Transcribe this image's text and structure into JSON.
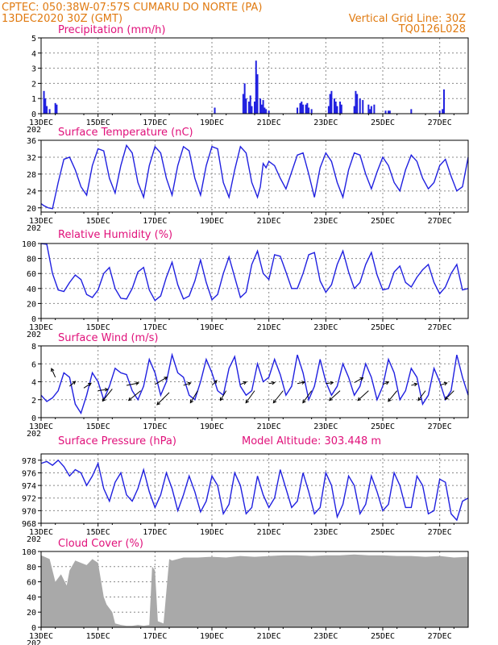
{
  "header": {
    "left_line1": "CPTEC:   050:38W-07:57S   CUMARU DO NORTE (PA)",
    "left_line2": "13DEC2020 30Z (GMT)",
    "right_line2": "Vertical Grid Line: 30Z",
    "right_line3": "TQ0126L028"
  },
  "colors": {
    "line": "#2020e0",
    "bar": "#2020e0",
    "cloud": "#a9a9a9",
    "title": "#e0107a",
    "header": "#e07a10",
    "grid": "#888888"
  },
  "x_axis": {
    "day_ticks": [
      "13DEC",
      "15DEC",
      "17DEC",
      "19DEC",
      "21DEC",
      "23DEC",
      "25DEC",
      "27DEC"
    ],
    "day_values": [
      0,
      2,
      4,
      6,
      8,
      10,
      12,
      14
    ],
    "range": [
      0,
      15
    ],
    "under_label": "202"
  },
  "chart_data": [
    {
      "type": "bar",
      "title": "Precipitation (mm/h)",
      "ylim": [
        0,
        5
      ],
      "yticks": [
        0,
        1,
        2,
        3,
        4,
        5
      ],
      "x": [
        0.1,
        0.15,
        0.2,
        0.3,
        0.5,
        0.55,
        6.1,
        7.1,
        7.15,
        7.2,
        7.3,
        7.35,
        7.4,
        7.5,
        7.55,
        7.6,
        7.7,
        7.75,
        7.8,
        7.85,
        7.9,
        8.0,
        9.0,
        9.1,
        9.15,
        9.2,
        9.3,
        9.35,
        9.4,
        9.5,
        10.1,
        10.15,
        10.2,
        10.3,
        10.35,
        10.4,
        10.5,
        10.55,
        11.0,
        11.05,
        11.1,
        11.2,
        11.3,
        11.5,
        11.55,
        11.6,
        11.7,
        12.1,
        12.2,
        12.25,
        13.0,
        14.0,
        14.1,
        14.15
      ],
      "values": [
        1.5,
        1.0,
        0.5,
        0.3,
        0.7,
        0.6,
        0.4,
        1.3,
        2.0,
        1.0,
        0.8,
        1.2,
        0.5,
        0.8,
        3.5,
        2.6,
        1.0,
        0.6,
        0.9,
        0.4,
        0.3,
        0.2,
        0.4,
        0.7,
        0.8,
        0.6,
        0.6,
        0.7,
        0.4,
        0.3,
        0.5,
        1.3,
        1.5,
        1.0,
        0.8,
        0.5,
        0.8,
        0.6,
        0.5,
        1.5,
        1.3,
        1.0,
        0.9,
        0.6,
        0.3,
        0.5,
        0.6,
        0.2,
        0.2,
        0.2,
        0.3,
        0.2,
        0.3,
        1.6
      ]
    },
    {
      "type": "line",
      "title": "Surface Temperature (nC)",
      "ylim": [
        19,
        36
      ],
      "yticks": [
        20,
        24,
        28,
        32,
        36
      ],
      "ytick_labels": [
        "20",
        "24",
        "28",
        "32",
        "36"
      ],
      "extra_yticks": [],
      "x": [
        0.0,
        0.1,
        0.25,
        0.4,
        0.6,
        0.8,
        1.0,
        1.2,
        1.4,
        1.6,
        1.8,
        2.0,
        2.2,
        2.4,
        2.6,
        2.8,
        3.0,
        3.2,
        3.4,
        3.6,
        3.8,
        4.0,
        4.2,
        4.4,
        4.6,
        4.8,
        5.0,
        5.2,
        5.4,
        5.6,
        5.8,
        6.0,
        6.2,
        6.4,
        6.6,
        6.8,
        7.0,
        7.2,
        7.4,
        7.6,
        7.7,
        7.8,
        7.9,
        8.0,
        8.2,
        8.4,
        8.6,
        8.8,
        9.0,
        9.2,
        9.4,
        9.6,
        9.8,
        10.0,
        10.2,
        10.4,
        10.6,
        10.8,
        11.0,
        11.2,
        11.4,
        11.6,
        11.8,
        12.0,
        12.2,
        12.4,
        12.6,
        12.8,
        13.0,
        13.2,
        13.4,
        13.6,
        13.8,
        14.0,
        14.2,
        14.4,
        14.6,
        14.8,
        15.0
      ],
      "values": [
        21.0,
        20.5,
        20.0,
        19.8,
        26.0,
        31.5,
        32.0,
        29.0,
        25.0,
        23.0,
        30.0,
        34.0,
        33.5,
        27.0,
        23.5,
        30.0,
        34.8,
        33.0,
        26.0,
        22.5,
        30.0,
        34.5,
        33.0,
        27.0,
        23.0,
        30.0,
        34.5,
        33.5,
        27.0,
        23.0,
        30.0,
        34.5,
        34.0,
        26.0,
        22.5,
        29.0,
        34.5,
        33.0,
        26.0,
        22.5,
        25.0,
        30.5,
        29.5,
        31.0,
        30.0,
        27.0,
        24.5,
        28.5,
        32.5,
        33.0,
        28.0,
        22.5,
        29.5,
        33.0,
        31.0,
        26.0,
        22.5,
        29.0,
        33.0,
        32.5,
        28.0,
        24.5,
        28.5,
        32.0,
        30.0,
        26.0,
        24.0,
        29.0,
        32.5,
        31.0,
        27.0,
        24.5,
        26.0,
        30.0,
        31.5,
        27.5,
        24.0,
        25.0,
        32.0
      ]
    },
    {
      "type": "line",
      "title": "Relative Humidity (%)",
      "ylim": [
        0,
        100
      ],
      "yticks": [
        0,
        20,
        40,
        60,
        80,
        100
      ],
      "x": [
        0.0,
        0.2,
        0.4,
        0.6,
        0.8,
        1.0,
        1.2,
        1.4,
        1.6,
        1.8,
        2.0,
        2.2,
        2.4,
        2.6,
        2.8,
        3.0,
        3.2,
        3.4,
        3.6,
        3.8,
        4.0,
        4.2,
        4.4,
        4.6,
        4.8,
        5.0,
        5.2,
        5.4,
        5.6,
        5.8,
        6.0,
        6.2,
        6.4,
        6.6,
        6.8,
        7.0,
        7.2,
        7.4,
        7.6,
        7.8,
        8.0,
        8.2,
        8.4,
        8.6,
        8.8,
        9.0,
        9.2,
        9.4,
        9.6,
        9.8,
        10.0,
        10.2,
        10.4,
        10.6,
        10.8,
        11.0,
        11.2,
        11.4,
        11.6,
        11.8,
        12.0,
        12.2,
        12.4,
        12.6,
        12.8,
        13.0,
        13.2,
        13.4,
        13.6,
        13.8,
        14.0,
        14.2,
        14.4,
        14.6,
        14.8,
        15.0
      ],
      "values": [
        100,
        99,
        60,
        38,
        36,
        48,
        58,
        52,
        32,
        28,
        38,
        60,
        68,
        40,
        27,
        26,
        40,
        62,
        68,
        38,
        24,
        30,
        55,
        75,
        45,
        26,
        30,
        50,
        78,
        48,
        25,
        32,
        60,
        82,
        55,
        28,
        35,
        72,
        90,
        60,
        52,
        85,
        83,
        62,
        40,
        40,
        60,
        85,
        88,
        50,
        35,
        45,
        72,
        90,
        62,
        40,
        48,
        72,
        88,
        58,
        38,
        40,
        62,
        70,
        48,
        42,
        55,
        65,
        72,
        48,
        33,
        42,
        60,
        72,
        38,
        40
      ]
    },
    {
      "type": "line",
      "title": "Surface Wind (m/s)",
      "ylim": [
        0,
        8
      ],
      "yticks": [
        0,
        2,
        4,
        6,
        8
      ],
      "x": [
        0.0,
        0.2,
        0.4,
        0.6,
        0.8,
        1.0,
        1.2,
        1.4,
        1.6,
        1.8,
        2.0,
        2.2,
        2.4,
        2.6,
        2.8,
        3.0,
        3.2,
        3.4,
        3.6,
        3.8,
        4.0,
        4.2,
        4.4,
        4.6,
        4.8,
        5.0,
        5.2,
        5.4,
        5.6,
        5.8,
        6.0,
        6.2,
        6.4,
        6.6,
        6.8,
        7.0,
        7.2,
        7.4,
        7.6,
        7.8,
        8.0,
        8.2,
        8.4,
        8.6,
        8.8,
        9.0,
        9.2,
        9.4,
        9.6,
        9.8,
        10.0,
        10.2,
        10.4,
        10.6,
        10.8,
        11.0,
        11.2,
        11.4,
        11.6,
        11.8,
        12.0,
        12.2,
        12.4,
        12.6,
        12.8,
        13.0,
        13.2,
        13.4,
        13.6,
        13.8,
        14.0,
        14.2,
        14.4,
        14.6,
        14.8,
        15.0
      ],
      "values": [
        2.5,
        1.8,
        2.2,
        3.0,
        5.0,
        4.5,
        1.5,
        0.5,
        2.5,
        5.0,
        4.0,
        2.0,
        3.5,
        5.5,
        5.0,
        4.8,
        3.0,
        2.0,
        3.5,
        6.5,
        5.0,
        2.5,
        4.0,
        7.0,
        5.0,
        4.5,
        2.5,
        2.0,
        4.0,
        6.5,
        5.0,
        3.0,
        2.5,
        5.5,
        6.8,
        3.5,
        2.5,
        3.0,
        6.0,
        4.0,
        4.5,
        6.5,
        4.8,
        2.5,
        3.5,
        7.0,
        5.0,
        2.0,
        3.5,
        6.5,
        4.0,
        2.5,
        3.5,
        6.0,
        4.5,
        2.5,
        3.5,
        6.0,
        4.5,
        2.0,
        3.5,
        6.5,
        5.0,
        2.0,
        3.0,
        5.5,
        4.5,
        1.5,
        2.5,
        5.5,
        4.0,
        2.0,
        3.0,
        7.0,
        4.5,
        2.5
      ],
      "vectors": {
        "x": [
          0.5,
          1.0,
          1.5,
          2.0,
          2.5,
          3.0,
          3.5,
          4.0,
          4.5,
          5.0,
          5.5,
          6.0,
          6.5,
          7.0,
          7.5,
          8.0,
          8.5,
          9.0,
          9.5,
          10.0,
          10.5,
          11.0,
          11.5,
          12.0,
          12.5,
          13.0,
          13.5,
          14.0,
          14.5
        ],
        "u": [
          -0.8,
          1.2,
          1.5,
          2.0,
          -2.0,
          2.5,
          -2.5,
          2.5,
          -2.5,
          1.5,
          -1.5,
          1.0,
          -1.2,
          1.2,
          -1.8,
          1.2,
          -2.0,
          1.5,
          -1.8,
          1.5,
          -2.2,
          1.8,
          -2.2,
          1.2,
          -1.8,
          1.2,
          -1.5,
          1.5,
          -1.8
        ],
        "v": [
          1.8,
          1.0,
          1.0,
          0.3,
          -2.5,
          0.5,
          -2.0,
          1.5,
          -2.5,
          0.5,
          -2.5,
          1.0,
          -2.0,
          0.5,
          -2.5,
          0.2,
          -2.5,
          0.3,
          -2.5,
          0.2,
          -2.0,
          1.0,
          -2.0,
          0.5,
          -2.2,
          0.3,
          -2.0,
          0.5,
          -1.8
        ],
        "base": [
          4.5,
          3.5,
          3.3,
          3.0,
          3.2,
          3.6,
          3.0,
          3.7,
          2.8,
          3.6,
          3.0,
          3.6,
          3.0,
          3.7,
          3.0,
          3.8,
          3.0,
          3.8,
          3.0,
          3.8,
          3.0,
          3.9,
          3.0,
          3.7,
          3.0,
          3.6,
          3.0,
          3.6,
          3.0
        ]
      }
    },
    {
      "type": "line",
      "title": "Surface Pressure (hPa)",
      "annotation": "Model Altitude: 303.448 m",
      "ylim": [
        968,
        979
      ],
      "yticks": [
        968,
        970,
        972,
        974,
        976,
        978
      ],
      "x": [
        0.0,
        0.2,
        0.4,
        0.6,
        0.8,
        1.0,
        1.2,
        1.4,
        1.6,
        1.8,
        2.0,
        2.2,
        2.4,
        2.6,
        2.8,
        3.0,
        3.2,
        3.4,
        3.6,
        3.8,
        4.0,
        4.2,
        4.4,
        4.6,
        4.8,
        5.0,
        5.2,
        5.4,
        5.6,
        5.8,
        6.0,
        6.2,
        6.4,
        6.6,
        6.8,
        7.0,
        7.2,
        7.4,
        7.6,
        7.8,
        8.0,
        8.2,
        8.4,
        8.6,
        8.8,
        9.0,
        9.2,
        9.4,
        9.6,
        9.8,
        10.0,
        10.2,
        10.4,
        10.6,
        10.8,
        11.0,
        11.2,
        11.4,
        11.6,
        11.8,
        12.0,
        12.2,
        12.4,
        12.6,
        12.8,
        13.0,
        13.2,
        13.4,
        13.6,
        13.8,
        14.0,
        14.2,
        14.4,
        14.6,
        14.8,
        15.0
      ],
      "values": [
        977.5,
        977.8,
        977.2,
        978.0,
        977.0,
        975.5,
        976.5,
        976.0,
        974.0,
        975.5,
        977.5,
        973.5,
        971.5,
        974.5,
        976.0,
        972.5,
        971.5,
        973.5,
        976.5,
        973.0,
        970.5,
        972.5,
        976.0,
        973.5,
        970.0,
        972.5,
        975.5,
        973.0,
        969.8,
        971.5,
        975.5,
        974.0,
        969.5,
        971.0,
        976.0,
        974.0,
        969.5,
        970.5,
        975.5,
        972.5,
        970.5,
        972.0,
        976.5,
        973.5,
        970.5,
        971.5,
        976.0,
        973.0,
        969.5,
        970.5,
        976.0,
        974.0,
        969.0,
        971.0,
        975.5,
        974.0,
        969.5,
        971.0,
        975.5,
        973.0,
        970.0,
        971.0,
        976.0,
        974.0,
        970.5,
        970.5,
        975.5,
        974.0,
        969.5,
        970.0,
        975.0,
        974.5,
        969.5,
        968.5,
        971.5,
        972.0
      ]
    },
    {
      "type": "area",
      "title": "Cloud Cover (%)",
      "ylim": [
        0,
        100
      ],
      "yticks": [
        0,
        20,
        40,
        60,
        80,
        100
      ],
      "x": [
        0.0,
        0.3,
        0.5,
        0.7,
        0.9,
        1.0,
        1.2,
        1.4,
        1.6,
        1.8,
        2.0,
        2.2,
        2.3,
        2.5,
        2.6,
        2.8,
        3.0,
        3.2,
        3.4,
        3.6,
        3.8,
        3.9,
        4.0,
        4.1,
        4.3,
        4.5,
        4.6,
        4.8,
        5.0,
        5.5,
        6.0,
        6.5,
        7.0,
        7.5,
        8.0,
        8.5,
        9.0,
        9.5,
        10.0,
        10.5,
        11.0,
        11.5,
        12.0,
        12.5,
        13.0,
        13.5,
        14.0,
        14.5,
        15.0
      ],
      "values": [
        95,
        90,
        60,
        70,
        55,
        75,
        88,
        85,
        82,
        90,
        85,
        40,
        30,
        20,
        5,
        3,
        2,
        2,
        3,
        2,
        3,
        80,
        75,
        8,
        5,
        90,
        88,
        90,
        92,
        92,
        93,
        92,
        94,
        93,
        94,
        95,
        95,
        94,
        95,
        95,
        96,
        95,
        95,
        94,
        94,
        93,
        94,
        92,
        93
      ]
    }
  ]
}
